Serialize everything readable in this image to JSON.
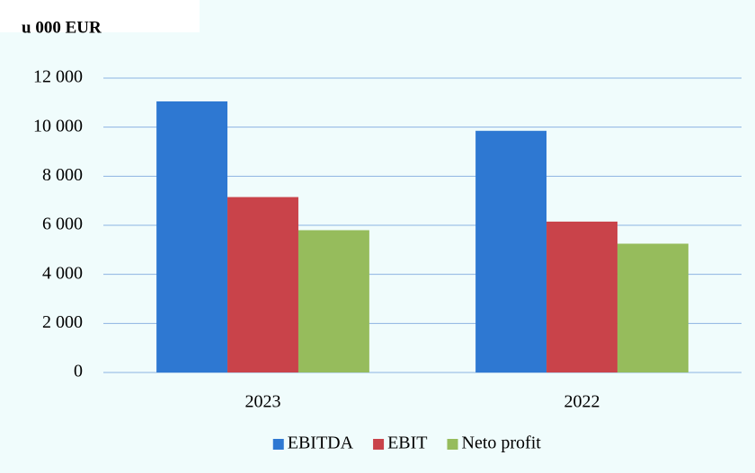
{
  "chart_data": {
    "type": "bar",
    "title": "u 000 EUR",
    "categories": [
      "2023",
      "2022"
    ],
    "series": [
      {
        "name": "EBITDA",
        "color": "#2e78d2",
        "values": [
          11050,
          9850
        ]
      },
      {
        "name": "EBIT",
        "color": "#c9434a",
        "values": [
          7150,
          6150
        ]
      },
      {
        "name": "Neto profit",
        "color": "#96bc5c",
        "values": [
          5800,
          5250
        ]
      }
    ],
    "ylim": [
      0,
      12000
    ],
    "yticks": [
      0,
      {
        "value": 2000,
        "label": "2 000"
      },
      {
        "value": 4000,
        "label": "4 000"
      },
      {
        "value": 6000,
        "label": "6 000"
      },
      {
        "value": 8000,
        "label": "8 000"
      },
      {
        "value": 10000,
        "label": "10 000"
      },
      {
        "value": 12000,
        "label": "12 000"
      }
    ],
    "grid": true,
    "legend": "bottom"
  }
}
